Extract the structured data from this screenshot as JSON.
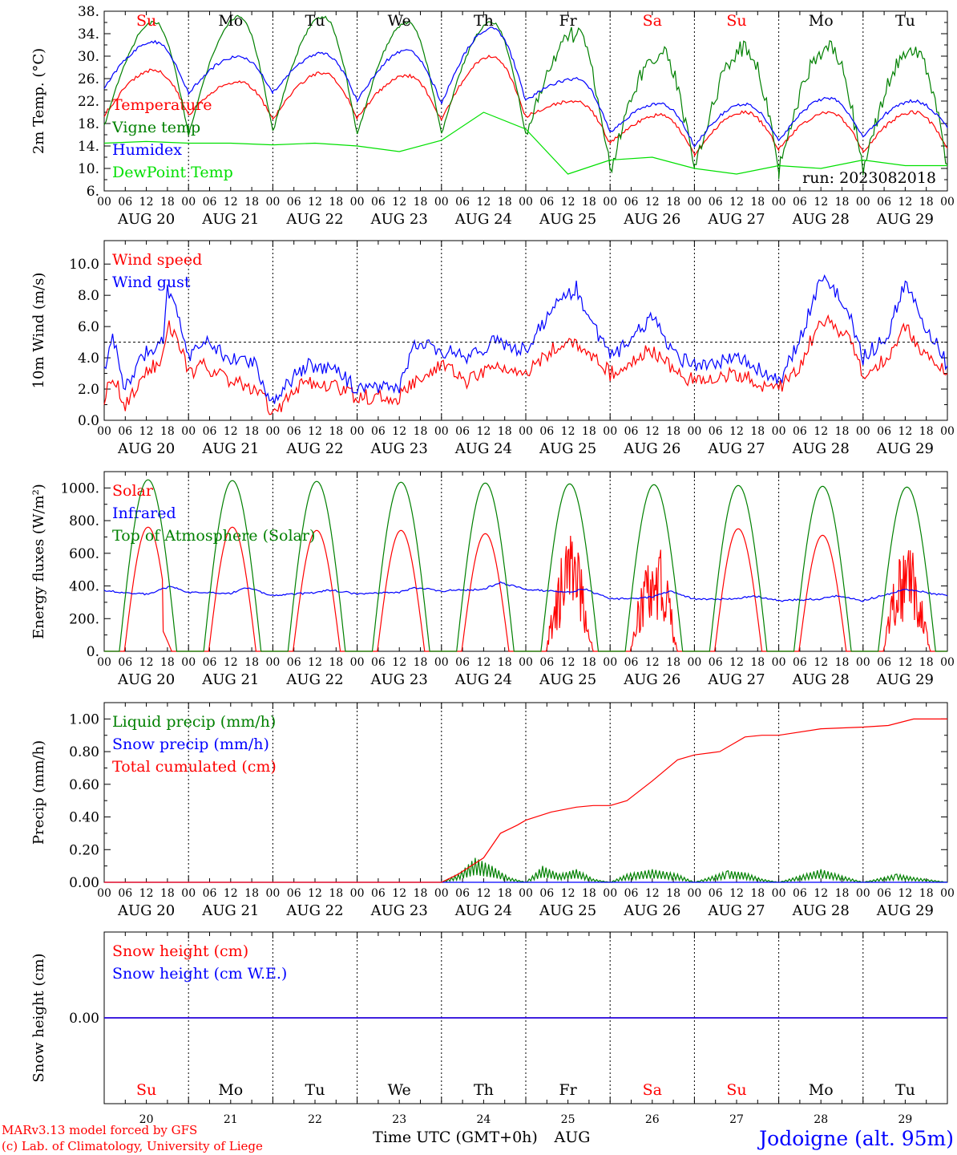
{
  "days": [
    {
      "dow": "Su",
      "weekend": true,
      "date": "AUG 20",
      "num": "20"
    },
    {
      "dow": "Mo",
      "weekend": false,
      "date": "AUG 21",
      "num": "21"
    },
    {
      "dow": "Tu",
      "weekend": false,
      "date": "AUG 22",
      "num": "22"
    },
    {
      "dow": "We",
      "weekend": false,
      "date": "AUG 23",
      "num": "23"
    },
    {
      "dow": "Th",
      "weekend": false,
      "date": "AUG 24",
      "num": "24"
    },
    {
      "dow": "Fr",
      "weekend": false,
      "date": "AUG 25",
      "num": "25"
    },
    {
      "dow": "Sa",
      "weekend": true,
      "date": "AUG 26",
      "num": "26"
    },
    {
      "dow": "Su",
      "weekend": true,
      "date": "AUG 27",
      "num": "27"
    },
    {
      "dow": "Mo",
      "weekend": false,
      "date": "AUG 28",
      "num": "28"
    },
    {
      "dow": "Tu",
      "weekend": false,
      "date": "AUG 29",
      "num": "29"
    }
  ],
  "hour_ticks": [
    "00",
    "06",
    "12",
    "18"
  ],
  "final_tick": "00",
  "colors": {
    "red": "#ff0000",
    "green": "#008000",
    "blue": "#0000ff",
    "light_green": "#00e000",
    "purple": "#800080",
    "weekend": "#ff0000",
    "weekday": "#000000"
  },
  "run_label": "run: 2023082018",
  "x_axis_title": "Time UTC (GMT+0h)",
  "x_axis_month": "AUG",
  "footer": {
    "model": "MARv3.13 model forced by GFS",
    "lab": "(c) Lab. of Climatology, University of Liege",
    "station": "Jodoigne (alt. 95m)"
  },
  "chart_data": [
    {
      "type": "line",
      "ylabel": "2m Temp. (°C)",
      "ylim": [
        6,
        38
      ],
      "yticks": [
        "6.",
        "10.",
        "14.",
        "18.",
        "22.",
        "26.",
        "30.",
        "34.",
        "38."
      ],
      "x_unit": "days since 2023-08-20 00 UTC",
      "series": [
        {
          "name": "Temperature",
          "color": "red",
          "key": "temp",
          "mins": [
            19.5,
            19.5,
            18.8,
            19.0,
            18.5,
            19.2,
            14.5,
            12.5,
            13.5,
            13.0,
            13.8
          ],
          "maxs": [
            27.5,
            25.5,
            27.0,
            26.5,
            30.0,
            22.0,
            19.5,
            20.0,
            20.0,
            20.0
          ]
        },
        {
          "name": "Vigne temp",
          "color": "green",
          "key": "vigne",
          "mins": [
            17.5,
            16.0,
            16.5,
            16.0,
            16.0,
            16.0,
            9.5,
            9.5,
            9.5,
            9.5,
            10.5
          ],
          "maxs": [
            36.0,
            37.0,
            37.0,
            36.0,
            36.0,
            34.0,
            30.5,
            31.5,
            31.5,
            31.5
          ]
        },
        {
          "name": "Humidex",
          "color": "blue",
          "key": "humidex",
          "mins": [
            24.5,
            23.5,
            23.5,
            22.0,
            21.5,
            22.0,
            16.5,
            14.0,
            15.0,
            15.5,
            17.5
          ],
          "maxs": [
            32.5,
            30.0,
            30.5,
            31.0,
            35.0,
            26.0,
            21.5,
            21.5,
            22.5,
            22.0
          ]
        },
        {
          "name": "DewPoint Temp",
          "color": "light_green",
          "key": "dew",
          "values": [
            [
              0,
              14.5
            ],
            [
              0.5,
              14.8
            ],
            [
              1,
              14.5
            ],
            [
              1.5,
              14.5
            ],
            [
              2,
              14.2
            ],
            [
              2.5,
              14.5
            ],
            [
              3,
              14.0
            ],
            [
              3.5,
              13.0
            ],
            [
              4,
              15.0
            ],
            [
              4.5,
              20.0
            ],
            [
              5,
              17.0
            ],
            [
              5.5,
              9.0
            ],
            [
              6,
              11.5
            ],
            [
              6.5,
              12.0
            ],
            [
              7,
              10.0
            ],
            [
              7.5,
              9.0
            ],
            [
              8,
              10.5
            ],
            [
              8.5,
              10.0
            ],
            [
              9,
              11.5
            ],
            [
              9.5,
              10.5
            ],
            [
              10,
              10.5
            ]
          ]
        }
      ]
    },
    {
      "type": "line",
      "ylabel": "10m Wind (m/s)",
      "ylim": [
        0,
        11.5
      ],
      "yticks": [
        "0.0",
        "2.0",
        "4.0",
        "6.0",
        "8.0",
        "10.0"
      ],
      "ref_line": 5.0,
      "series": [
        {
          "name": "Wind speed",
          "color": "red",
          "key": "wind",
          "values": [
            [
              0,
              1.5
            ],
            [
              0.1,
              3.0
            ],
            [
              0.25,
              1.0
            ],
            [
              0.5,
              3.0
            ],
            [
              0.7,
              4.0
            ],
            [
              0.75,
              6.0
            ],
            [
              0.85,
              5.5
            ],
            [
              1.0,
              3.0
            ],
            [
              1.2,
              3.5
            ],
            [
              1.5,
              2.5
            ],
            [
              1.8,
              2.0
            ],
            [
              2.0,
              0.5
            ],
            [
              2.2,
              1.5
            ],
            [
              2.4,
              2.5
            ],
            [
              2.8,
              2.0
            ],
            [
              3.0,
              1.5
            ],
            [
              3.5,
              1.5
            ],
            [
              3.7,
              2.5
            ],
            [
              4.0,
              3.5
            ],
            [
              4.3,
              2.5
            ],
            [
              4.6,
              3.5
            ],
            [
              5.0,
              3.0
            ],
            [
              5.3,
              4.5
            ],
            [
              5.6,
              5.0
            ],
            [
              5.8,
              4.0
            ],
            [
              6.0,
              3.0
            ],
            [
              6.3,
              4.0
            ],
            [
              6.5,
              4.5
            ],
            [
              6.8,
              3.0
            ],
            [
              7.0,
              2.5
            ],
            [
              7.5,
              3.0
            ],
            [
              7.7,
              2.5
            ],
            [
              8.0,
              2.0
            ],
            [
              8.2,
              3.0
            ],
            [
              8.5,
              6.5
            ],
            [
              8.8,
              5.5
            ],
            [
              9.0,
              3.0
            ],
            [
              9.3,
              4.0
            ],
            [
              9.5,
              6.0
            ],
            [
              9.7,
              4.5
            ],
            [
              10.0,
              3.0
            ]
          ]
        },
        {
          "name": "Wind gust",
          "color": "blue",
          "key": "gust",
          "values": [
            [
              0,
              3.0
            ],
            [
              0.1,
              5.5
            ],
            [
              0.25,
              2.0
            ],
            [
              0.5,
              4.5
            ],
            [
              0.7,
              5.0
            ],
            [
              0.75,
              8.5
            ],
            [
              0.85,
              7.0
            ],
            [
              1.0,
              4.0
            ],
            [
              1.2,
              5.0
            ],
            [
              1.5,
              4.0
            ],
            [
              1.8,
              3.5
            ],
            [
              2.0,
              1.0
            ],
            [
              2.2,
              2.5
            ],
            [
              2.4,
              3.5
            ],
            [
              2.8,
              3.0
            ],
            [
              3.0,
              2.0
            ],
            [
              3.5,
              2.0
            ],
            [
              3.7,
              5.0
            ],
            [
              4.0,
              4.5
            ],
            [
              4.3,
              4.0
            ],
            [
              4.6,
              5.0
            ],
            [
              5.0,
              4.5
            ],
            [
              5.3,
              7.0
            ],
            [
              5.6,
              8.5
            ],
            [
              5.8,
              6.0
            ],
            [
              6.0,
              4.0
            ],
            [
              6.3,
              5.5
            ],
            [
              6.5,
              6.5
            ],
            [
              6.8,
              4.0
            ],
            [
              7.0,
              3.5
            ],
            [
              7.5,
              4.0
            ],
            [
              7.7,
              3.5
            ],
            [
              8.0,
              2.5
            ],
            [
              8.2,
              4.5
            ],
            [
              8.5,
              9.0
            ],
            [
              8.8,
              7.5
            ],
            [
              9.0,
              4.0
            ],
            [
              9.3,
              5.5
            ],
            [
              9.5,
              9.0
            ],
            [
              9.7,
              6.5
            ],
            [
              10.0,
              3.5
            ]
          ]
        }
      ]
    },
    {
      "type": "line",
      "ylabel": "Energy fluxes (W/m²)",
      "ylim": [
        0,
        1100
      ],
      "yticks": [
        "0.",
        "200.",
        "400.",
        "600.",
        "800.",
        "1000."
      ],
      "series": [
        {
          "name": "Solar",
          "color": "red",
          "key": "solar",
          "peaks": [
            760,
            760,
            740,
            740,
            720,
            720,
            700,
            750,
            710,
            710
          ],
          "cloudy_days": [
            5,
            6,
            9
          ]
        },
        {
          "name": "Infrared",
          "color": "blue",
          "key": "infrared",
          "values": [
            [
              0,
              370
            ],
            [
              0.5,
              350
            ],
            [
              0.8,
              400
            ],
            [
              1.0,
              360
            ],
            [
              1.5,
              355
            ],
            [
              1.7,
              390
            ],
            [
              2.0,
              340
            ],
            [
              2.5,
              360
            ],
            [
              2.7,
              375
            ],
            [
              3.0,
              350
            ],
            [
              3.5,
              360
            ],
            [
              3.7,
              390
            ],
            [
              4.0,
              370
            ],
            [
              4.5,
              380
            ],
            [
              4.7,
              420
            ],
            [
              5.0,
              380
            ],
            [
              5.5,
              360
            ],
            [
              5.7,
              380
            ],
            [
              6.0,
              320
            ],
            [
              6.5,
              330
            ],
            [
              6.7,
              370
            ],
            [
              7.0,
              320
            ],
            [
              7.5,
              320
            ],
            [
              7.7,
              340
            ],
            [
              8.0,
              310
            ],
            [
              8.5,
              320
            ],
            [
              8.7,
              340
            ],
            [
              9.0,
              310
            ],
            [
              9.5,
              380
            ],
            [
              10.0,
              340
            ]
          ]
        },
        {
          "name": "Top of Atmosphere (Solar)",
          "color": "green",
          "key": "toa",
          "peaks": [
            1050,
            1045,
            1040,
            1035,
            1030,
            1025,
            1020,
            1015,
            1010,
            1005
          ]
        }
      ]
    },
    {
      "type": "line",
      "ylabel": "Precip (mm/h)",
      "ylim": [
        0,
        1.1
      ],
      "yticks": [
        "0.00",
        "0.20",
        "0.40",
        "0.60",
        "0.80",
        "1.00"
      ],
      "series": [
        {
          "name": "Liquid precip (mm/h)",
          "color": "green",
          "key": "liquid",
          "values": [
            [
              4.0,
              0
            ],
            [
              4.2,
              0.05
            ],
            [
              4.4,
              0.15
            ],
            [
              4.6,
              0.1
            ],
            [
              4.8,
              0.03
            ],
            [
              5.0,
              0
            ],
            [
              5.2,
              0.1
            ],
            [
              5.4,
              0.05
            ],
            [
              5.6,
              0.08
            ],
            [
              5.8,
              0.02
            ],
            [
              6.0,
              0
            ],
            [
              6.2,
              0.05
            ],
            [
              6.5,
              0.08
            ],
            [
              6.8,
              0.05
            ],
            [
              7.0,
              0
            ],
            [
              7.4,
              0.07
            ],
            [
              7.6,
              0.06
            ],
            [
              7.8,
              0.02
            ],
            [
              8.0,
              0
            ],
            [
              8.5,
              0.08
            ],
            [
              9.0,
              0
            ],
            [
              9.4,
              0.05
            ],
            [
              9.6,
              0.03
            ],
            [
              10.0,
              0
            ]
          ]
        },
        {
          "name": "Snow precip (mm/h)",
          "color": "blue",
          "key": "snow",
          "values": [
            [
              0,
              0
            ],
            [
              10.0,
              0
            ]
          ]
        },
        {
          "name": "Total cumulated (cm)",
          "color": "red",
          "key": "cum",
          "values": [
            [
              0,
              0
            ],
            [
              4.0,
              0
            ],
            [
              4.2,
              0.05
            ],
            [
              4.5,
              0.15
            ],
            [
              4.7,
              0.3
            ],
            [
              4.9,
              0.35
            ],
            [
              5.0,
              0.38
            ],
            [
              5.3,
              0.43
            ],
            [
              5.6,
              0.46
            ],
            [
              5.8,
              0.47
            ],
            [
              6.0,
              0.47
            ],
            [
              6.2,
              0.5
            ],
            [
              6.5,
              0.62
            ],
            [
              6.8,
              0.75
            ],
            [
              7.0,
              0.78
            ],
            [
              7.3,
              0.8
            ],
            [
              7.6,
              0.89
            ],
            [
              7.8,
              0.9
            ],
            [
              8.0,
              0.9
            ],
            [
              8.5,
              0.94
            ],
            [
              9.0,
              0.95
            ],
            [
              9.3,
              0.96
            ],
            [
              9.6,
              1.0
            ],
            [
              10.0,
              1.0
            ]
          ]
        }
      ]
    },
    {
      "type": "line",
      "ylabel": "Snow height (cm)",
      "ylim": [
        -1,
        1
      ],
      "yticks": [
        "0.00"
      ],
      "series": [
        {
          "name": "Snow height (cm)",
          "color": "red",
          "key": "snowh",
          "values": [
            [
              0,
              0
            ],
            [
              10,
              0
            ]
          ]
        },
        {
          "name": "Snow height (cm W.E.)",
          "color": "blue",
          "key": "snowwe",
          "values": [
            [
              0,
              0
            ],
            [
              10,
              0
            ]
          ]
        }
      ]
    }
  ]
}
